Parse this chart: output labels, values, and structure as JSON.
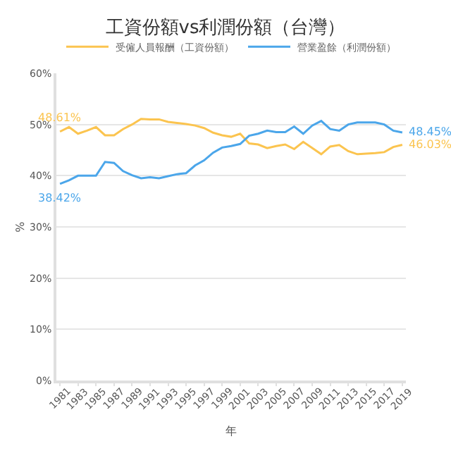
{
  "chart_data": {
    "type": "line",
    "title": "工資份額vs利潤份額（台灣）",
    "xlabel": "年",
    "ylabel": "%",
    "x": [
      1981,
      1982,
      1983,
      1984,
      1985,
      1986,
      1987,
      1988,
      1989,
      1990,
      1991,
      1992,
      1993,
      1994,
      1995,
      1996,
      1997,
      1998,
      1999,
      2000,
      2001,
      2002,
      2003,
      2004,
      2005,
      2006,
      2007,
      2008,
      2009,
      2010,
      2011,
      2012,
      2013,
      2014,
      2015,
      2016,
      2017,
      2018,
      2019
    ],
    "series": [
      {
        "name": "受僱人員報酬（工資份額）",
        "color": "#fbc44f",
        "values": [
          48.61,
          49.5,
          48.2,
          48.8,
          49.5,
          47.9,
          47.9,
          49.1,
          50.0,
          51.1,
          51.0,
          51.0,
          50.5,
          50.3,
          50.1,
          49.8,
          49.3,
          48.4,
          47.9,
          47.6,
          48.2,
          46.3,
          46.1,
          45.4,
          45.8,
          46.1,
          45.2,
          46.6,
          45.4,
          44.2,
          45.7,
          46.0,
          44.8,
          44.2,
          44.3,
          44.4,
          44.6,
          45.6,
          46.03
        ],
        "value_labels": [
          "48.61%",
          null,
          null,
          null,
          null,
          null,
          null,
          null,
          null,
          null,
          null,
          null,
          null,
          null,
          null,
          null,
          null,
          null,
          null,
          null,
          null,
          null,
          null,
          null,
          null,
          null,
          null,
          null,
          null,
          null,
          null,
          null,
          null,
          null,
          null,
          null,
          null,
          null,
          "46.03%"
        ]
      },
      {
        "name": "營業盈餘（利潤份額）",
        "color": "#4ba6ea",
        "values": [
          38.42,
          39.1,
          40.0,
          40.0,
          40.0,
          42.7,
          42.5,
          40.9,
          40.1,
          39.5,
          39.7,
          39.5,
          39.9,
          40.3,
          40.5,
          42.0,
          43.0,
          44.5,
          45.5,
          45.8,
          46.2,
          47.8,
          48.2,
          48.8,
          48.5,
          48.5,
          49.6,
          48.2,
          49.8,
          50.7,
          49.1,
          48.8,
          50.0,
          50.4,
          50.4,
          50.4,
          50.0,
          48.8,
          48.45
        ],
        "value_labels": [
          "38.42%",
          null,
          null,
          null,
          null,
          null,
          null,
          null,
          null,
          null,
          null,
          null,
          null,
          null,
          null,
          null,
          null,
          null,
          null,
          null,
          null,
          null,
          null,
          null,
          null,
          null,
          null,
          null,
          null,
          null,
          null,
          null,
          null,
          null,
          null,
          null,
          null,
          null,
          "48.45%"
        ]
      }
    ],
    "xlim": [
      1980.6,
      2019.4
    ],
    "xticks": [
      1981,
      1983,
      1985,
      1987,
      1989,
      1991,
      1993,
      1995,
      1997,
      1999,
      2001,
      2003,
      2005,
      2007,
      2009,
      2011,
      2013,
      2015,
      2017,
      2019
    ],
    "ylim": [
      0,
      60
    ],
    "yticks": [
      {
        "value": 0,
        "label": "0%"
      },
      {
        "value": 10,
        "label": "10%"
      },
      {
        "value": 20,
        "label": "20%"
      },
      {
        "value": 30,
        "label": "30%"
      },
      {
        "value": 40,
        "label": "40%"
      },
      {
        "value": 50,
        "label": "50%"
      },
      {
        "value": 60,
        "label": "60%"
      }
    ],
    "grid": "y",
    "legend": "top",
    "marker": "none",
    "line_style": "solid"
  }
}
